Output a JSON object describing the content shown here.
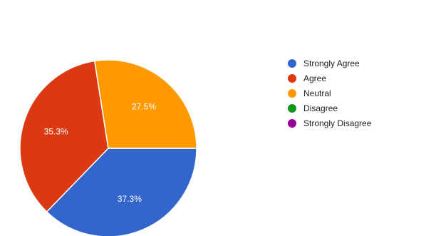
{
  "chart_data": {
    "type": "pie",
    "categories": [
      "Strongly Agree",
      "Agree",
      "Neutral",
      "Disagree",
      "Strongly Disagree"
    ],
    "values": [
      37.3,
      35.3,
      27.5,
      0,
      0
    ],
    "value_labels": [
      "37.3%",
      "35.3%",
      "27.5%",
      "",
      ""
    ],
    "colors": [
      "#3366cc",
      "#dc3912",
      "#ff9900",
      "#109618",
      "#990099"
    ],
    "legend_position": "right"
  }
}
